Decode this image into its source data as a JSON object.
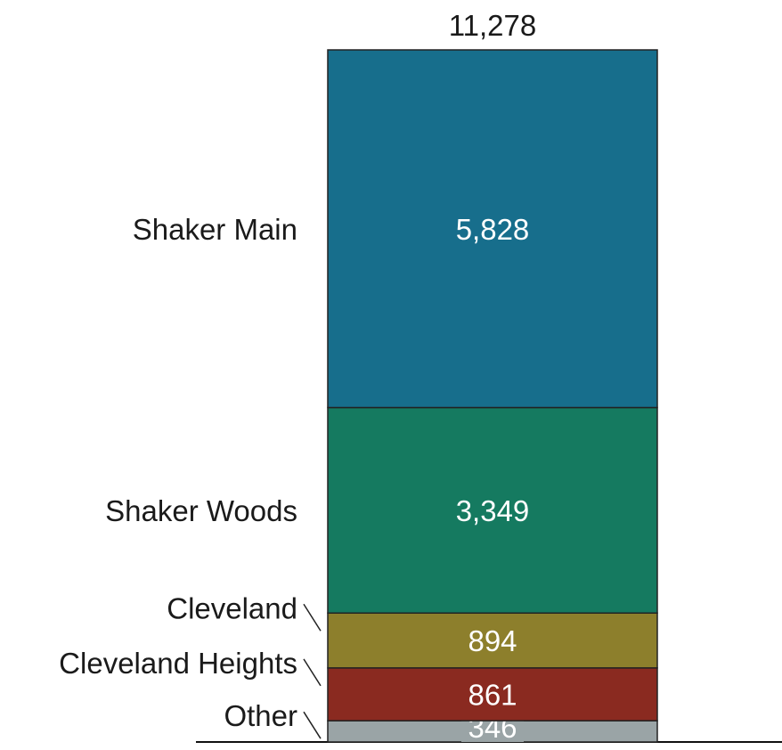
{
  "chart_data": {
    "type": "bar",
    "stacked": true,
    "title": "",
    "xlabel": "",
    "ylabel": "",
    "total": "11,278",
    "ylim": [
      0,
      11278
    ],
    "grid": false,
    "legend": "none",
    "segments": [
      {
        "name": "Other",
        "value": 346,
        "label": "346",
        "color": "#9aa4a6"
      },
      {
        "name": "Cleveland Heights",
        "value": 861,
        "label": "861",
        "color": "#8a2a20"
      },
      {
        "name": "Cleveland",
        "value": 894,
        "label": "894",
        "color": "#8d7f2c"
      },
      {
        "name": "Shaker Woods",
        "value": 3349,
        "label": "3,349",
        "color": "#157a60"
      },
      {
        "name": "Shaker Main",
        "value": 5828,
        "label": "5,828",
        "color": "#176e8c"
      }
    ]
  }
}
